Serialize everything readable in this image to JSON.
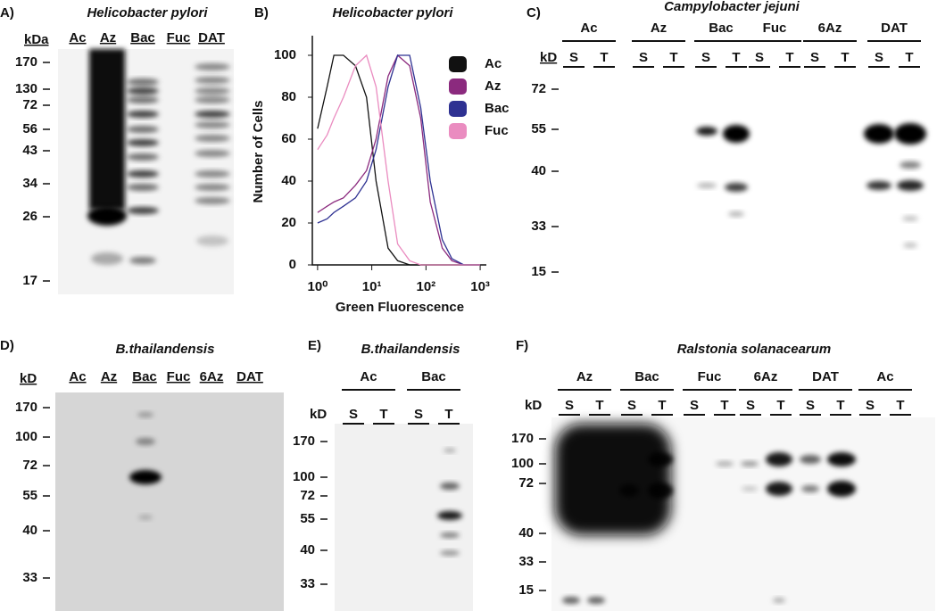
{
  "panels": [
    {
      "label": "A)",
      "title": "Helicobacter pylori",
      "unit": "kDa",
      "groups": [
        {
          "name": "Ac",
          "color": "#111111"
        },
        {
          "name": "Az",
          "color": "#7b2a7e"
        },
        {
          "name": "Bac",
          "color": "#2e3192"
        },
        {
          "name": "Fuc",
          "color": "#f4a6a6"
        },
        {
          "name": "DAT",
          "color": "#3fa3a8"
        }
      ],
      "markers": [
        "170",
        "130",
        "72",
        "56",
        "43",
        "34",
        "26",
        "17"
      ]
    },
    {
      "label": "C)",
      "title": "Campylobacter jejuni",
      "unit": "kD",
      "groups": [
        {
          "name": "Ac",
          "color": "#111111",
          "sub": [
            "S",
            "T"
          ]
        },
        {
          "name": "Az",
          "color": "#7b2a7e",
          "sub": [
            "S",
            "T"
          ]
        },
        {
          "name": "Bac",
          "color": "#2e3192",
          "sub": [
            "S",
            "T"
          ]
        },
        {
          "name": "Fuc",
          "color": "#f08da0",
          "sub": [
            "S",
            "T"
          ]
        },
        {
          "name": "6Az",
          "color": "#e8262b",
          "sub": [
            "S",
            "T"
          ]
        },
        {
          "name": "DAT",
          "color": "#3fa3a8",
          "sub": [
            "S",
            "T"
          ]
        }
      ],
      "markers": [
        "72",
        "55",
        "40",
        "33",
        "15"
      ]
    },
    {
      "label": "D)",
      "title": "B.thailandensis",
      "unit": "kD",
      "groups": [
        {
          "name": "Ac",
          "color": "#111111"
        },
        {
          "name": "Az",
          "color": "#7b2a7e"
        },
        {
          "name": "Bac",
          "color": "#2e3192"
        },
        {
          "name": "Fuc",
          "color": "#f4a6a6"
        },
        {
          "name": "6Az",
          "color": "#e8262b"
        },
        {
          "name": "DAT",
          "color": "#3fa3a8"
        }
      ],
      "markers": [
        "170",
        "100",
        "72",
        "55",
        "40",
        "33"
      ]
    },
    {
      "label": "E)",
      "title": "B.thailandensis",
      "unit": "kD",
      "groups": [
        {
          "name": "Ac",
          "color": "#111111",
          "sub": [
            "S",
            "T"
          ]
        },
        {
          "name": "Bac",
          "color": "#2e3192",
          "sub": [
            "S",
            "T"
          ]
        }
      ],
      "markers": [
        "170",
        "100",
        "72",
        "55",
        "40",
        "33"
      ]
    },
    {
      "label": "F)",
      "title": "Ralstonia solanacearum",
      "unit": "kD",
      "groups": [
        {
          "name": "Az",
          "color": "#7b2a7e",
          "sub": [
            "S",
            "T"
          ]
        },
        {
          "name": "Bac",
          "color": "#2e3192",
          "sub": [
            "S",
            "T"
          ]
        },
        {
          "name": "Fuc",
          "color": "#f08da0",
          "sub": [
            "S",
            "T"
          ]
        },
        {
          "name": "6Az",
          "color": "#e8262b",
          "sub": [
            "S",
            "T"
          ]
        },
        {
          "name": "DAT",
          "color": "#3fa3a8",
          "sub": [
            "S",
            "T"
          ]
        },
        {
          "name": "Ac",
          "color": "#111111",
          "sub": [
            "S",
            "T"
          ]
        }
      ],
      "markers": [
        "170",
        "100",
        "72",
        "40",
        "33",
        "15"
      ]
    }
  ],
  "chart_data": {
    "type": "line",
    "label": "B)",
    "title": "Helicobacter pylori",
    "xlabel": "Green Fluorescence",
    "ylabel": "Number of Cells",
    "xlog": true,
    "x": [
      1,
      1.5,
      2,
      3,
      5,
      8,
      12,
      20,
      30,
      50,
      80,
      120,
      200,
      300,
      500,
      1000
    ],
    "series": [
      {
        "name": "Ac",
        "color": "#111111",
        "values": [
          65,
          85,
          100,
          100,
          95,
          80,
          40,
          8,
          2,
          0,
          0,
          0,
          0,
          0,
          0,
          0
        ]
      },
      {
        "name": "Az",
        "color": "#8b2a7e",
        "values": [
          25,
          28,
          30,
          32,
          38,
          45,
          60,
          90,
          100,
          95,
          70,
          30,
          8,
          2,
          0,
          0
        ]
      },
      {
        "name": "Bac",
        "color": "#2e3192",
        "values": [
          20,
          22,
          25,
          28,
          32,
          40,
          55,
          85,
          100,
          100,
          75,
          40,
          12,
          3,
          0,
          0
        ]
      },
      {
        "name": "Fuc",
        "color": "#ea8cc0",
        "values": [
          55,
          62,
          70,
          80,
          95,
          100,
          85,
          40,
          10,
          2,
          0,
          0,
          0,
          0,
          0,
          0
        ]
      }
    ],
    "xlim": [
      0.8,
      1300
    ],
    "ylim": [
      0,
      108
    ],
    "xticks": [
      {
        "value": 1,
        "label": "10⁰"
      },
      {
        "value": 10,
        "label": "10¹"
      },
      {
        "value": 100,
        "label": "10²"
      },
      {
        "value": 1000,
        "label": "10³"
      }
    ],
    "yticks": [
      0,
      20,
      40,
      60,
      80,
      100
    ]
  }
}
